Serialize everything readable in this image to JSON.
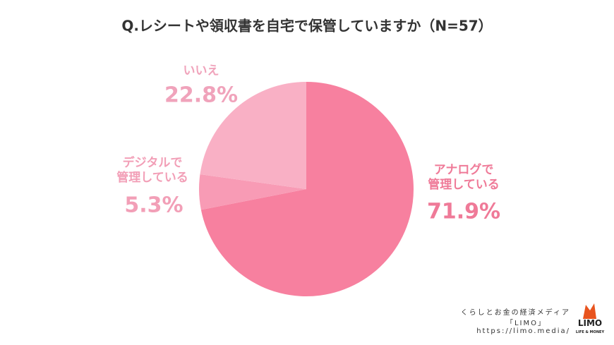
{
  "chart_data": {
    "type": "pie",
    "title": "Q.レシートや領収書を自宅で保管していますか（N=57）",
    "categories": [
      "アナログで\n管理している",
      "デジタルで\n管理している",
      "いいえ"
    ],
    "values": [
      71.9,
      5.3,
      22.8
    ],
    "value_labels": [
      "71.9%",
      "5.3%",
      "22.8%"
    ],
    "colors": [
      "#f7809f",
      "#f89bb5",
      "#f9b0c5"
    ],
    "start_angle": 0,
    "direction": "clockwise"
  },
  "footer": {
    "tagline": "くらしとお金の経済メディア",
    "brand": "「LIMO」",
    "url": "https://limo.media/",
    "logo": "LIMO",
    "logo_sub": "LIFE & MONEY"
  }
}
